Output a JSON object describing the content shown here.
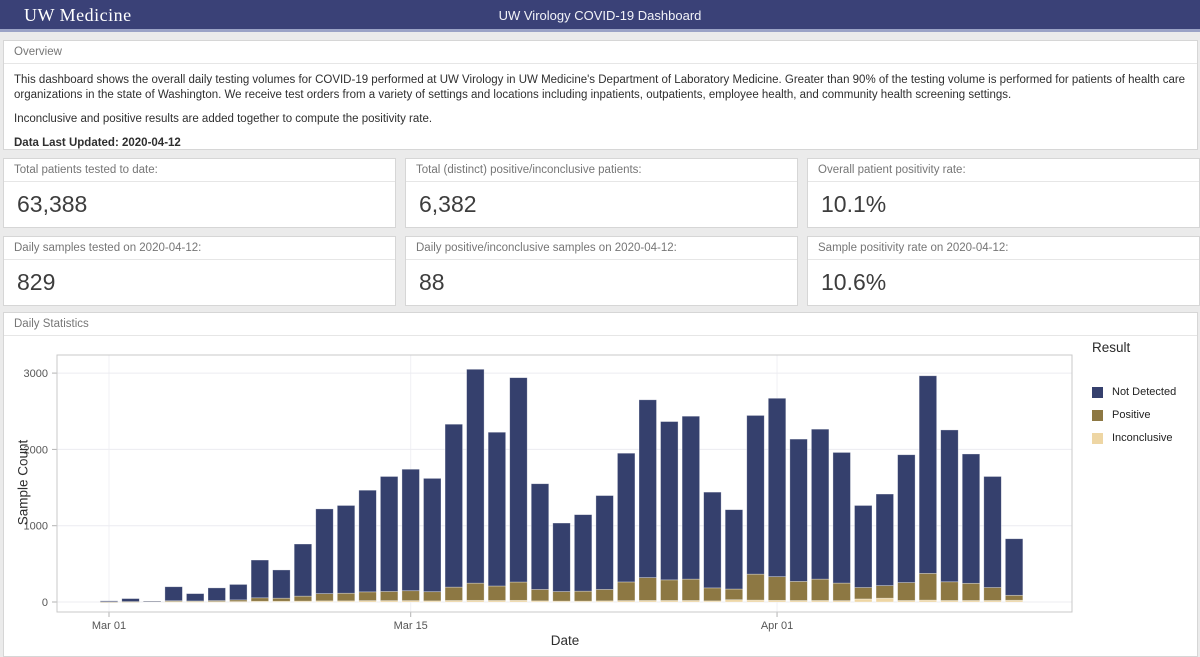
{
  "header": {
    "logo": "UW Medicine",
    "title": "UW Virology COVID-19 Dashboard"
  },
  "overview": {
    "section_label": "Overview",
    "paragraph1": "This dashboard shows the overall daily testing volumes for COVID-19 performed at UW Virology in UW Medicine's Department of Laboratory Medicine. Greater than 90% of the testing volume is performed for patients of health care organizations in the state of Washington. We receive test orders from a variety of settings and locations including inpatients, outpatients, employee health, and community health screening settings.",
    "paragraph2": "Inconclusive and positive results are added together to compute the positivity rate.",
    "last_updated": "Data Last Updated: 2020-04-12"
  },
  "cards": [
    {
      "label": "Total patients tested to date:",
      "value": "63,388"
    },
    {
      "label": "Total (distinct) positive/inconclusive patients:",
      "value": "6,382"
    },
    {
      "label": "Overall patient positivity rate:",
      "value": "10.1%"
    },
    {
      "label": "Daily samples tested on 2020-04-12:",
      "value": "829"
    },
    {
      "label": "Daily positive/inconclusive samples on 2020-04-12:",
      "value": "88"
    },
    {
      "label": "Sample positivity rate on 2020-04-12:",
      "value": "10.6%"
    }
  ],
  "daily_statistics": {
    "section_label": "Daily Statistics"
  },
  "chart_data": {
    "type": "bar",
    "stacked": true,
    "xlabel": "Date",
    "ylabel": "Sample Count",
    "legend_title": "Result",
    "ylim": [
      0,
      3200
    ],
    "yticks": [
      0,
      1000,
      2000,
      3000
    ],
    "xtick_labels": [
      "Mar 01",
      "Mar 15",
      "Apr 01"
    ],
    "xtick_indices": [
      0,
      14,
      31
    ],
    "grid": true,
    "legend_position": "right",
    "dates": [
      "2020-03-01",
      "2020-03-02",
      "2020-03-03",
      "2020-03-04",
      "2020-03-05",
      "2020-03-06",
      "2020-03-07",
      "2020-03-08",
      "2020-03-09",
      "2020-03-10",
      "2020-03-11",
      "2020-03-12",
      "2020-03-13",
      "2020-03-14",
      "2020-03-15",
      "2020-03-16",
      "2020-03-17",
      "2020-03-18",
      "2020-03-19",
      "2020-03-20",
      "2020-03-21",
      "2020-03-22",
      "2020-03-23",
      "2020-03-24",
      "2020-03-25",
      "2020-03-26",
      "2020-03-27",
      "2020-03-28",
      "2020-03-29",
      "2020-03-30",
      "2020-03-31",
      "2020-04-01",
      "2020-04-02",
      "2020-04-03",
      "2020-04-04",
      "2020-04-05",
      "2020-04-06",
      "2020-04-07",
      "2020-04-08",
      "2020-04-09",
      "2020-04-10",
      "2020-04-11",
      "2020-04-12"
    ],
    "stack_order_bottom_to_top": [
      "Inconclusive",
      "Positive",
      "Not Detected"
    ],
    "series": [
      {
        "name": "Not Detected",
        "color": "#35406d",
        "values": [
          12,
          39,
          2,
          183,
          96,
          166,
          202,
          495,
          370,
          683,
          1110,
          1150,
          1332,
          1507,
          1592,
          1485,
          2135,
          2803,
          2015,
          2678,
          1385,
          898,
          1003,
          1230,
          1687,
          2330,
          2075,
          2135,
          1255,
          1040,
          2080,
          2338,
          1865,
          1965,
          1712,
          1075,
          1200,
          1675,
          2590,
          1990,
          1695,
          1455,
          741
        ]
      },
      {
        "name": "Positive",
        "color": "#8d7843",
        "values": [
          2,
          4,
          1,
          12,
          10,
          14,
          22,
          45,
          40,
          65,
          95,
          100,
          115,
          120,
          130,
          120,
          175,
          225,
          190,
          240,
          150,
          125,
          130,
          150,
          245,
          300,
          270,
          280,
          170,
          140,
          340,
          310,
          250,
          280,
          230,
          150,
          165,
          235,
          350,
          245,
          225,
          170,
          65
        ]
      },
      {
        "name": "Inconclusive",
        "color": "#eed6a4",
        "values": [
          1,
          2,
          10,
          5,
          4,
          5,
          6,
          10,
          10,
          12,
          15,
          15,
          18,
          18,
          18,
          15,
          20,
          22,
          20,
          22,
          15,
          12,
          12,
          15,
          18,
          20,
          20,
          20,
          15,
          30,
          25,
          22,
          20,
          20,
          18,
          40,
          50,
          20,
          25,
          20,
          20,
          20,
          23
        ]
      }
    ]
  }
}
